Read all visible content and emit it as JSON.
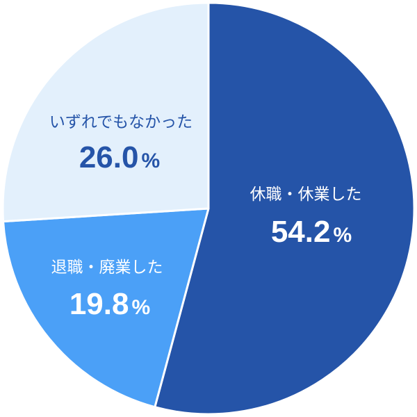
{
  "chart_data": {
    "type": "pie",
    "start_angle_deg": 0,
    "direction": "clockwise",
    "slices": [
      {
        "label": "休職・休業した",
        "value": 54.2,
        "value_text": "54.2",
        "unit": "%",
        "color": "#2554a8",
        "text_color": "#ffffff"
      },
      {
        "label": "退職・廃業した",
        "value": 19.8,
        "value_text": "19.8",
        "unit": "%",
        "color": "#4ba0f7",
        "text_color": "#ffffff"
      },
      {
        "label": "いずれでもなかった",
        "value": 26.0,
        "value_text": "26.0",
        "unit": "%",
        "color": "#e3f0fc",
        "text_color": "#2554a8"
      }
    ]
  }
}
